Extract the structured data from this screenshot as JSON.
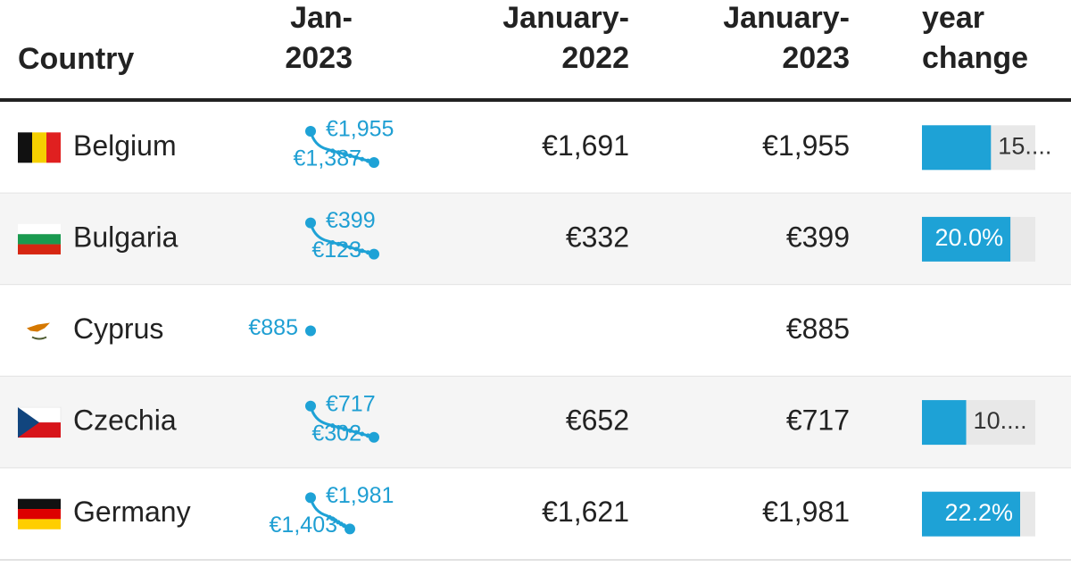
{
  "table": {
    "headers": [
      [
        "Country"
      ],
      [
        "Jan-",
        "2023"
      ],
      [
        "January-",
        "2022"
      ],
      [
        "January-",
        "2023"
      ],
      [
        "year",
        "change"
      ]
    ],
    "rows": [
      {
        "country": "Belgium",
        "spark": [
          "€1,955",
          "€1,387"
        ],
        "jan2022": "€1,691",
        "jan2023": "€1,955",
        "change": 15.6,
        "change_label": "15...."
      },
      {
        "country": "Bulgaria",
        "spark": [
          "€399",
          "€123"
        ],
        "jan2022": "€332",
        "jan2023": "€399",
        "change": 20.0,
        "change_label": "20.0%"
      },
      {
        "country": "Cyprus",
        "spark": [
          "€885"
        ],
        "jan2022": null,
        "jan2023": "€885",
        "change": null,
        "change_label": null
      },
      {
        "country": "Czechia",
        "spark": [
          "€717",
          "€302"
        ],
        "jan2022": "€652",
        "jan2023": "€717",
        "change": 10.0,
        "change_label": "10...."
      },
      {
        "country": "Germany",
        "spark": [
          "€1,981",
          "€1,403"
        ],
        "jan2022": "€1,621",
        "jan2023": "€1,981",
        "change": 22.2,
        "change_label": "22.2%"
      }
    ]
  }
}
